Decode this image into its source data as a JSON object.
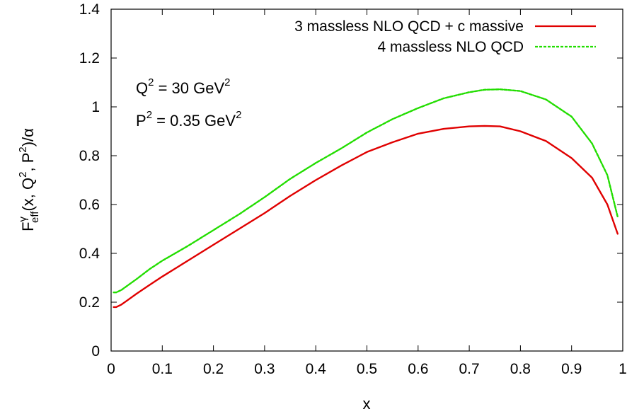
{
  "chart_data": {
    "type": "line",
    "xlabel": "x",
    "ylabel": {
      "base": "F",
      "sup": "γ",
      "sub": "eff",
      "args_open": "(x, Q",
      "args_sup1": "2",
      "args_mid": ", P",
      "args_sup2": "2",
      "args_close": ")/α"
    },
    "xlim": [
      0,
      1
    ],
    "ylim": [
      0,
      1.4
    ],
    "xticks": [
      0,
      0.1,
      0.2,
      0.3,
      0.4,
      0.5,
      0.6,
      0.7,
      0.8,
      0.9,
      1
    ],
    "xtick_labels": [
      "0",
      "0.1",
      "0.2",
      "0.3",
      "0.4",
      "0.5",
      "0.6",
      "0.7",
      "0.8",
      "0.9",
      "1"
    ],
    "yticks": [
      0,
      0.2,
      0.4,
      0.6,
      0.8,
      1,
      1.2,
      1.4
    ],
    "ytick_labels": [
      "0",
      "0.2",
      "0.4",
      "0.6",
      "0.8",
      "1",
      "1.2",
      "1.4"
    ],
    "grid": false,
    "legend_position": "top-right",
    "annotations": [
      {
        "base": "Q",
        "sup": "2",
        "rest": " = 30 GeV",
        "sup2": "2"
      },
      {
        "base": "P",
        "sup": "2",
        "rest": " = 0.35 GeV",
        "sup2": "2"
      }
    ],
    "series": [
      {
        "name": "3 massless NLO QCD + c massive",
        "color": "#e00000",
        "dash": "solid",
        "x": [
          0.005,
          0.01,
          0.02,
          0.03,
          0.05,
          0.075,
          0.1,
          0.15,
          0.2,
          0.25,
          0.3,
          0.35,
          0.4,
          0.45,
          0.5,
          0.55,
          0.6,
          0.65,
          0.7,
          0.73,
          0.76,
          0.8,
          0.85,
          0.9,
          0.94,
          0.97,
          0.99
        ],
        "y": [
          0.18,
          0.18,
          0.19,
          0.205,
          0.235,
          0.27,
          0.305,
          0.37,
          0.435,
          0.5,
          0.565,
          0.635,
          0.7,
          0.76,
          0.815,
          0.855,
          0.89,
          0.91,
          0.92,
          0.922,
          0.92,
          0.9,
          0.86,
          0.79,
          0.71,
          0.6,
          0.48
        ]
      },
      {
        "name": "4 massless NLO QCD",
        "color": "#22dd00",
        "dash": "dashed",
        "x": [
          0.005,
          0.01,
          0.02,
          0.03,
          0.05,
          0.075,
          0.1,
          0.15,
          0.2,
          0.25,
          0.3,
          0.35,
          0.4,
          0.45,
          0.5,
          0.55,
          0.6,
          0.65,
          0.7,
          0.73,
          0.76,
          0.8,
          0.85,
          0.9,
          0.94,
          0.97,
          0.99
        ],
        "y": [
          0.24,
          0.24,
          0.25,
          0.265,
          0.295,
          0.335,
          0.37,
          0.43,
          0.495,
          0.56,
          0.63,
          0.705,
          0.77,
          0.83,
          0.895,
          0.95,
          0.995,
          1.035,
          1.06,
          1.07,
          1.072,
          1.065,
          1.03,
          0.96,
          0.85,
          0.72,
          0.55
        ]
      }
    ]
  }
}
